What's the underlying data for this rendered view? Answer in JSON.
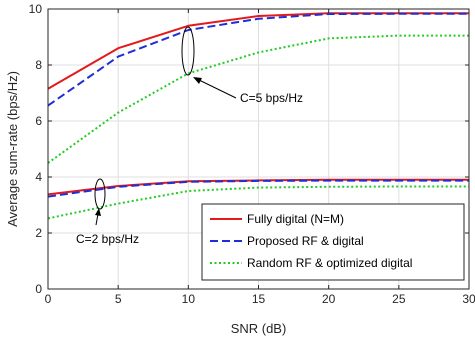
{
  "chart_data": {
    "type": "line",
    "title": "",
    "xlabel": "SNR (dB)",
    "ylabel": "Average sum-rate (bps/Hz)",
    "xlim": [
      0,
      30
    ],
    "ylim": [
      0,
      10
    ],
    "xticks": [
      0,
      5,
      10,
      15,
      20,
      25,
      30
    ],
    "yticks": [
      0,
      2,
      4,
      6,
      8,
      10
    ],
    "grid": true,
    "legend_position": "bottom-right",
    "legend": [
      {
        "name": "Fully digital (N=M)",
        "color": "#e31a1c",
        "style": "solid"
      },
      {
        "name": "Proposed RF & digital",
        "color": "#1f2fd6",
        "style": "dashed"
      },
      {
        "name": "Random RF & optimized digital",
        "color": "#22cc22",
        "style": "dotted"
      }
    ],
    "groups": [
      {
        "label": "C=5 bps/Hz",
        "series": [
          {
            "legend_index": 0,
            "x": [
              0,
              5,
              10,
              15,
              20,
              25,
              30
            ],
            "y": [
              7.15,
              8.6,
              9.4,
              9.75,
              9.85,
              9.85,
              9.85
            ]
          },
          {
            "legend_index": 1,
            "x": [
              0,
              5,
              10,
              15,
              20,
              25,
              30
            ],
            "y": [
              6.55,
              8.3,
              9.25,
              9.65,
              9.82,
              9.83,
              9.83
            ]
          },
          {
            "legend_index": 2,
            "x": [
              0,
              5,
              10,
              15,
              20,
              25,
              30
            ],
            "y": [
              4.5,
              6.3,
              7.7,
              8.45,
              8.95,
              9.05,
              9.05
            ]
          }
        ]
      },
      {
        "label": "C=2 bps/Hz",
        "series": [
          {
            "legend_index": 0,
            "x": [
              0,
              5,
              10,
              15,
              20,
              25,
              30
            ],
            "y": [
              3.38,
              3.68,
              3.85,
              3.88,
              3.9,
              3.9,
              3.9
            ]
          },
          {
            "legend_index": 1,
            "x": [
              0,
              5,
              10,
              15,
              20,
              25,
              30
            ],
            "y": [
              3.3,
              3.65,
              3.83,
              3.86,
              3.87,
              3.87,
              3.87
            ]
          },
          {
            "legend_index": 2,
            "x": [
              0,
              5,
              10,
              15,
              20,
              25,
              30
            ],
            "y": [
              2.52,
              3.05,
              3.5,
              3.62,
              3.65,
              3.66,
              3.66
            ]
          }
        ]
      }
    ]
  }
}
